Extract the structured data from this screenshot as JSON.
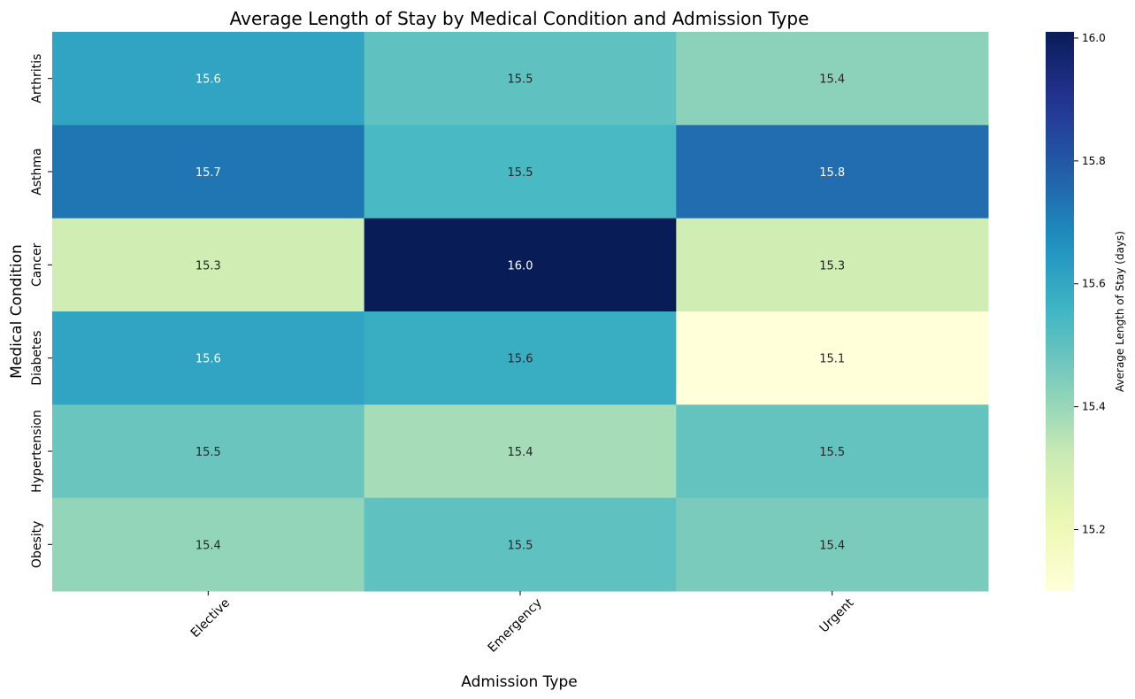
{
  "chart_data": {
    "type": "heatmap",
    "title": "Average Length of Stay by Medical Condition and Admission Type",
    "xlabel": "Admission Type",
    "ylabel": "Medical Condition",
    "x_categories": [
      "Elective",
      "Emergency",
      "Urgent"
    ],
    "y_categories": [
      "Arthritis",
      "Asthma",
      "Cancer",
      "Diabetes",
      "Hypertension",
      "Obesity"
    ],
    "values": [
      [
        15.61,
        15.5,
        15.42
      ],
      [
        15.73,
        15.54,
        15.75
      ],
      [
        15.3,
        16.01,
        15.3
      ],
      [
        15.61,
        15.58,
        15.1
      ],
      [
        15.48,
        15.38,
        15.49
      ],
      [
        15.41,
        15.5,
        15.45
      ]
    ],
    "value_labels": [
      [
        "15.6",
        "15.5",
        "15.4"
      ],
      [
        "15.7",
        "15.5",
        "15.8"
      ],
      [
        "15.3",
        "16.0",
        "15.3"
      ],
      [
        "15.6",
        "15.6",
        "15.1"
      ],
      [
        "15.5",
        "15.4",
        "15.5"
      ],
      [
        "15.4",
        "15.5",
        "15.4"
      ]
    ],
    "colormap": "YlGnBu",
    "color_range": [
      15.1,
      16.01
    ],
    "colorbar": {
      "label": "Average Length of Stay (days)",
      "ticks": [
        15.2,
        15.4,
        15.6,
        15.8,
        16.0
      ],
      "tick_labels": [
        "15.2",
        "15.4",
        "15.6",
        "15.8",
        "16.0"
      ]
    }
  }
}
